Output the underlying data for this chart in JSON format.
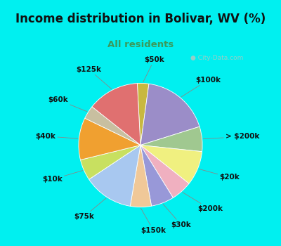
{
  "title": "Income distribution in Bolivar, WV (%)",
  "subtitle": "All residents",
  "title_fontsize": 12,
  "subtitle_fontsize": 9.5,
  "title_color": "#111111",
  "subtitle_color": "#3a9a5c",
  "bg_top_color": "#00f0f0",
  "bg_chart_color": "#e0f5ec",
  "watermark_text": "City-Data.com",
  "watermark_color": "#b0c8c0",
  "segments": [
    {
      "label": "$50k",
      "value": 3.0,
      "color": "#c8b840"
    },
    {
      "label": "$100k",
      "value": 18.0,
      "color": "#9b8dc8"
    },
    {
      "label": "> $200k",
      "value": 6.5,
      "color": "#a0c890"
    },
    {
      "label": "$20k",
      "value": 9.0,
      "color": "#f0f080"
    },
    {
      "label": "$200k",
      "value": 5.5,
      "color": "#f0b0c0"
    },
    {
      "label": "$30k",
      "value": 6.0,
      "color": "#9898d8"
    },
    {
      "label": "$150k",
      "value": 5.5,
      "color": "#f0c898"
    },
    {
      "label": "$75k",
      "value": 13.0,
      "color": "#a8c8f0"
    },
    {
      "label": "$10k",
      "value": 5.5,
      "color": "#c8e060"
    },
    {
      "label": "$40k",
      "value": 11.0,
      "color": "#f0a030"
    },
    {
      "label": "$60k",
      "value": 3.5,
      "color": "#c8bfa0"
    },
    {
      "label": "$125k",
      "value": 13.5,
      "color": "#e07070"
    }
  ]
}
